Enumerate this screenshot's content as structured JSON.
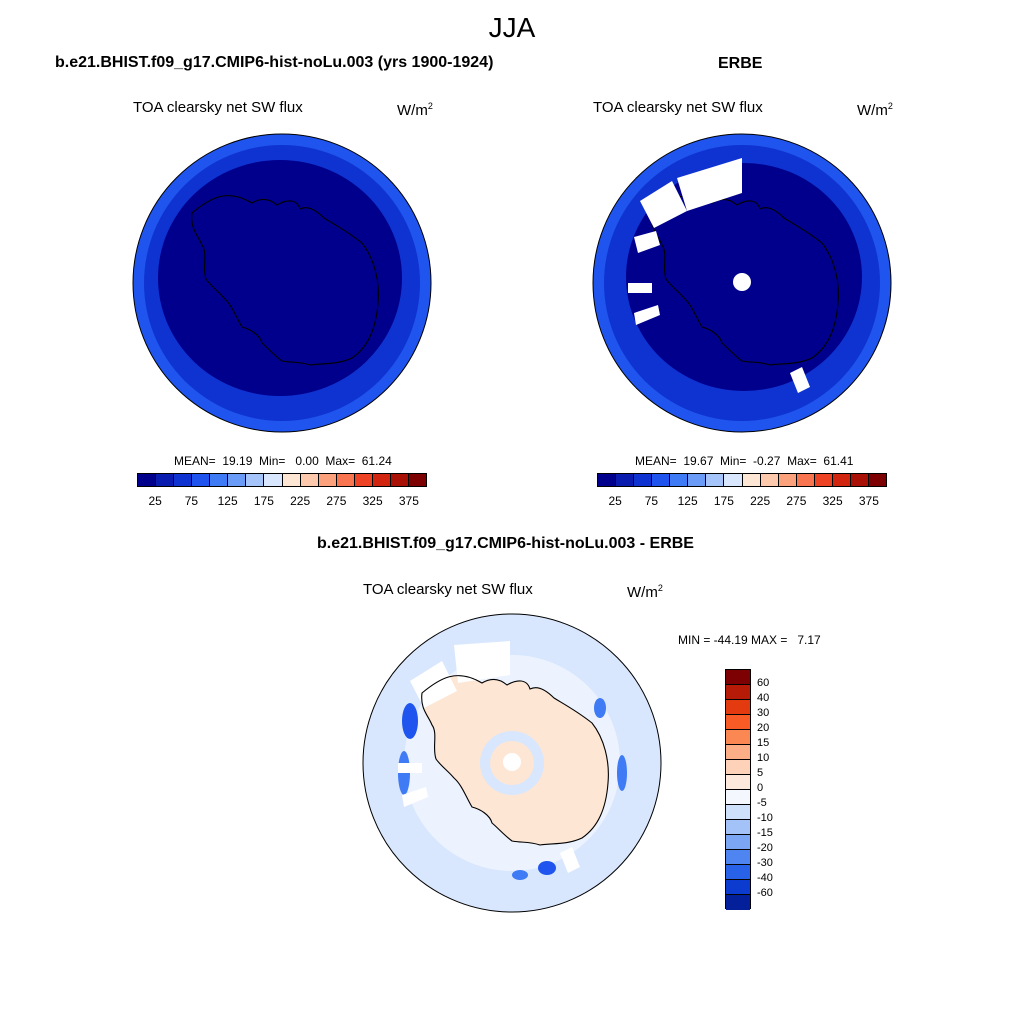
{
  "season": "JJA",
  "units": "W/m",
  "units_sup": "2",
  "panels": {
    "model": {
      "title": "b.e21.BHIST.f09_g17.CMIP6-hist-noLu.003 (yrs 1900-1924)",
      "variable": "TOA clearsky net SW flux",
      "stats": "MEAN=  19.19  Min=   0.00  Max=  61.24"
    },
    "obs": {
      "title": "ERBE",
      "variable": "TOA clearsky net SW flux",
      "stats": "MEAN=  19.67  Min=  -0.27  Max=  61.41"
    },
    "diff": {
      "title": "b.e21.BHIST.f09_g17.CMIP6-hist-noLu.003 - ERBE",
      "variable": "TOA clearsky net SW flux",
      "stats": "MIN = -44.19 MAX =   7.17"
    }
  },
  "colorbar_main": {
    "colors": [
      "#00008c",
      "#0a1bb0",
      "#0f33d0",
      "#1f55ee",
      "#3e7bf5",
      "#6a9cf7",
      "#a4c4fa",
      "#d8e7fd",
      "#fde6d4",
      "#fcc9ad",
      "#fba27c",
      "#f8754f",
      "#ef4325",
      "#d2250f",
      "#a91006",
      "#7d0003"
    ],
    "ticks": [
      "25",
      "75",
      "125",
      "175",
      "225",
      "275",
      "325",
      "375"
    ]
  },
  "colorbar_diff": {
    "colors": [
      "#7d0003",
      "#b51b07",
      "#e33a10",
      "#f95b27",
      "#fb8753",
      "#fcae86",
      "#fdd2b8",
      "#fde9dc",
      "#f4f8fe",
      "#cfe0fb",
      "#a3c3f8",
      "#7aa6f4",
      "#4f85f0",
      "#2862e9",
      "#0c3ccf",
      "#03209a"
    ],
    "ticks": [
      "60",
      "40",
      "30",
      "20",
      "15",
      "10",
      "5",
      "0",
      "-5",
      "-10",
      "-15",
      "-20",
      "-30",
      "-40",
      "-60"
    ]
  },
  "map_colors": {
    "deep": "#00008c",
    "mid": "#0f33d0",
    "edge": "#1f55ee",
    "diff_light": "#d8e7fd",
    "diff_pale": "#ecf3fe",
    "diff_warm": "#fde6d4",
    "diff_blue": "#3e7bf5",
    "diff_dark": "#1f55ee",
    "missing": "#ffffff"
  }
}
